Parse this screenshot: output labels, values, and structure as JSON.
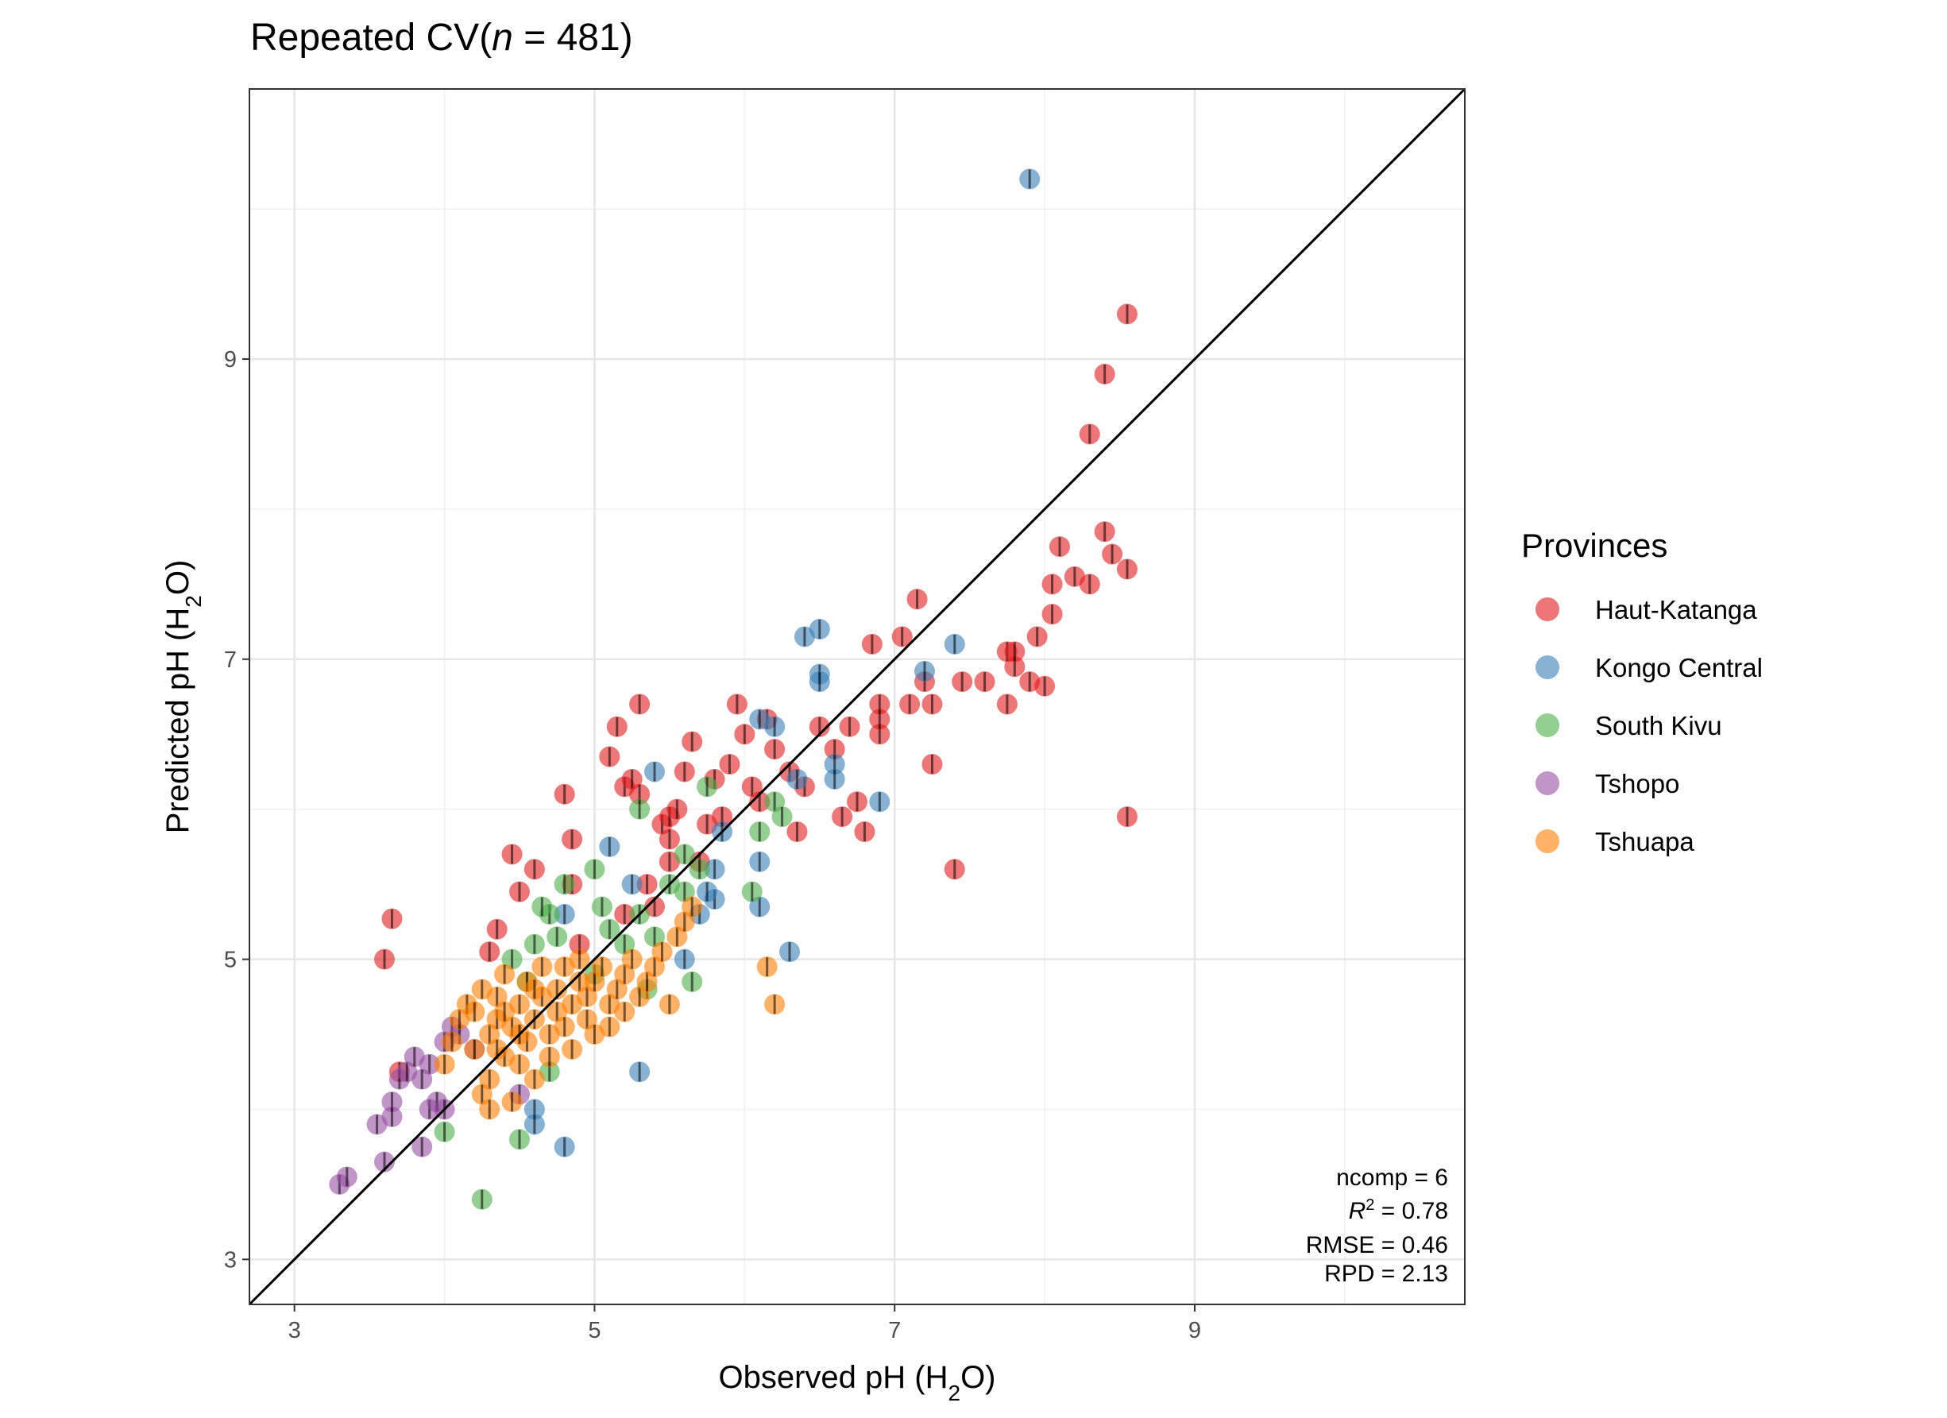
{
  "chart_data": {
    "type": "scatter",
    "title": {
      "prefix": "Repeated CV",
      "n_symbol": "n",
      "n_rest": " = 481)",
      "open_paren": "("
    },
    "xlabel": {
      "prefix": "Observed pH (H",
      "sub": "2",
      "suffix": "O)"
    },
    "ylabel": {
      "prefix": "Predicted pH (H",
      "sub": "2",
      "suffix": "O)"
    },
    "xlim": [
      2.7,
      10.8
    ],
    "ylim": [
      2.7,
      10.8
    ],
    "xticks": [
      "3",
      "5",
      "7",
      "9"
    ],
    "yticks": [
      "3",
      "5",
      "7",
      "9"
    ],
    "grid": true,
    "reference_line": "1:1",
    "legend": {
      "title": "Provinces",
      "position": "right"
    },
    "stats": {
      "ncomp": "ncomp = 6",
      "r2_symbol": "R",
      "r2_sup": "2",
      "r2_value": " = 0.78",
      "rmse": "RMSE = 0.46",
      "rpd": "RPD = 2.13"
    },
    "series": [
      {
        "name": "Haut-Katanga",
        "color": "#e41a1c",
        "points": [
          [
            3.6,
            5.0
          ],
          [
            3.65,
            5.27
          ],
          [
            3.7,
            4.25
          ],
          [
            4.3,
            5.05
          ],
          [
            4.35,
            5.2
          ],
          [
            4.45,
            5.7
          ],
          [
            4.5,
            5.45
          ],
          [
            4.6,
            5.6
          ],
          [
            4.8,
            6.1
          ],
          [
            4.85,
            5.8
          ],
          [
            4.85,
            5.5
          ],
          [
            5.1,
            6.35
          ],
          [
            5.15,
            6.55
          ],
          [
            5.2,
            6.15
          ],
          [
            5.25,
            6.2
          ],
          [
            5.3,
            6.7
          ],
          [
            5.3,
            6.1
          ],
          [
            5.35,
            5.5
          ],
          [
            5.4,
            5.35
          ],
          [
            5.45,
            5.9
          ],
          [
            5.5,
            5.95
          ],
          [
            5.5,
            5.8
          ],
          [
            5.55,
            6.0
          ],
          [
            5.6,
            6.25
          ],
          [
            5.65,
            6.45
          ],
          [
            5.7,
            5.65
          ],
          [
            5.75,
            5.9
          ],
          [
            5.8,
            6.2
          ],
          [
            5.85,
            5.95
          ],
          [
            5.9,
            6.3
          ],
          [
            5.95,
            6.7
          ],
          [
            6.0,
            6.5
          ],
          [
            6.05,
            6.15
          ],
          [
            6.1,
            6.05
          ],
          [
            6.15,
            6.6
          ],
          [
            6.2,
            6.4
          ],
          [
            6.3,
            6.25
          ],
          [
            6.35,
            5.85
          ],
          [
            6.4,
            6.15
          ],
          [
            6.5,
            6.55
          ],
          [
            6.6,
            6.4
          ],
          [
            6.65,
            5.95
          ],
          [
            6.7,
            6.55
          ],
          [
            6.75,
            6.05
          ],
          [
            6.8,
            5.85
          ],
          [
            6.85,
            7.1
          ],
          [
            6.9,
            6.7
          ],
          [
            6.9,
            6.5
          ],
          [
            7.05,
            7.15
          ],
          [
            7.1,
            6.7
          ],
          [
            7.15,
            7.4
          ],
          [
            7.2,
            6.85
          ],
          [
            7.25,
            6.3
          ],
          [
            7.25,
            6.7
          ],
          [
            7.4,
            5.6
          ],
          [
            7.45,
            6.85
          ],
          [
            7.6,
            6.85
          ],
          [
            7.75,
            7.05
          ],
          [
            7.75,
            6.7
          ],
          [
            7.8,
            6.95
          ],
          [
            7.9,
            6.85
          ],
          [
            7.95,
            7.15
          ],
          [
            8.0,
            6.82
          ],
          [
            8.05,
            7.5
          ],
          [
            8.1,
            7.75
          ],
          [
            8.05,
            7.3
          ],
          [
            8.2,
            7.55
          ],
          [
            8.3,
            8.5
          ],
          [
            8.3,
            7.5
          ],
          [
            8.4,
            8.9
          ],
          [
            8.4,
            7.85
          ],
          [
            8.45,
            7.7
          ],
          [
            8.55,
            9.3
          ],
          [
            8.55,
            7.6
          ],
          [
            8.55,
            5.95
          ],
          [
            7.8,
            7.05
          ],
          [
            6.9,
            6.6
          ],
          [
            5.5,
            5.65
          ],
          [
            5.2,
            5.3
          ],
          [
            4.9,
            5.1
          ]
        ]
      },
      {
        "name": "Kongo Central",
        "color": "#377eb8",
        "points": [
          [
            7.9,
            10.2
          ],
          [
            6.4,
            7.15
          ],
          [
            6.5,
            7.2
          ],
          [
            6.5,
            6.9
          ],
          [
            6.5,
            6.85
          ],
          [
            7.4,
            7.1
          ],
          [
            7.2,
            6.92
          ],
          [
            6.1,
            6.6
          ],
          [
            6.2,
            6.55
          ],
          [
            6.35,
            6.2
          ],
          [
            6.6,
            6.3
          ],
          [
            6.6,
            6.2
          ],
          [
            6.9,
            6.05
          ],
          [
            5.4,
            6.25
          ],
          [
            5.1,
            5.75
          ],
          [
            5.8,
            5.4
          ],
          [
            5.75,
            5.45
          ],
          [
            5.8,
            5.6
          ],
          [
            6.1,
            5.65
          ],
          [
            6.1,
            5.35
          ],
          [
            5.6,
            5.0
          ],
          [
            5.7,
            5.3
          ],
          [
            6.3,
            5.05
          ],
          [
            5.25,
            5.5
          ],
          [
            4.8,
            3.75
          ],
          [
            4.6,
            4.0
          ],
          [
            4.6,
            3.9
          ],
          [
            5.3,
            4.25
          ],
          [
            5.85,
            5.85
          ],
          [
            4.8,
            5.3
          ]
        ]
      },
      {
        "name": "South Kivu",
        "color": "#4daf4a",
        "points": [
          [
            4.25,
            3.4
          ],
          [
            4.5,
            3.8
          ],
          [
            4.0,
            3.85
          ],
          [
            4.7,
            4.25
          ],
          [
            5.0,
            4.9
          ],
          [
            5.2,
            5.1
          ],
          [
            5.3,
            5.3
          ],
          [
            5.5,
            5.5
          ],
          [
            5.6,
            5.7
          ],
          [
            5.7,
            5.6
          ],
          [
            5.0,
            5.6
          ],
          [
            4.8,
            5.5
          ],
          [
            4.7,
            5.3
          ],
          [
            4.6,
            5.1
          ],
          [
            5.3,
            6.0
          ],
          [
            5.6,
            5.45
          ],
          [
            5.65,
            4.85
          ],
          [
            5.75,
            6.15
          ],
          [
            6.05,
            5.45
          ],
          [
            6.1,
            5.85
          ],
          [
            6.2,
            6.05
          ],
          [
            6.25,
            5.95
          ],
          [
            4.75,
            5.15
          ],
          [
            5.05,
            5.35
          ],
          [
            5.4,
            5.15
          ],
          [
            4.55,
            4.85
          ],
          [
            4.45,
            5.0
          ],
          [
            4.65,
            5.35
          ],
          [
            5.35,
            4.8
          ],
          [
            5.1,
            5.2
          ]
        ]
      },
      {
        "name": "Tshopo",
        "color": "#984ea3",
        "points": [
          [
            3.3,
            3.5
          ],
          [
            3.35,
            3.55
          ],
          [
            3.55,
            3.9
          ],
          [
            3.6,
            3.65
          ],
          [
            3.65,
            4.05
          ],
          [
            3.7,
            4.2
          ],
          [
            3.75,
            4.25
          ],
          [
            3.8,
            4.35
          ],
          [
            3.85,
            3.75
          ],
          [
            3.9,
            4.0
          ],
          [
            3.9,
            4.3
          ],
          [
            3.95,
            4.05
          ],
          [
            4.0,
            4.45
          ],
          [
            4.05,
            4.55
          ],
          [
            4.1,
            4.5
          ],
          [
            3.65,
            3.95
          ],
          [
            3.85,
            4.2
          ],
          [
            4.0,
            4.0
          ],
          [
            4.2,
            4.4
          ],
          [
            4.5,
            4.1
          ]
        ]
      },
      {
        "name": "Tshuapa",
        "color": "#ff7f00",
        "points": [
          [
            4.1,
            4.6
          ],
          [
            4.15,
            4.7
          ],
          [
            4.2,
            4.4
          ],
          [
            4.25,
            4.8
          ],
          [
            4.3,
            4.5
          ],
          [
            4.3,
            4.2
          ],
          [
            4.35,
            4.6
          ],
          [
            4.35,
            4.75
          ],
          [
            4.4,
            4.35
          ],
          [
            4.4,
            4.9
          ],
          [
            4.45,
            4.55
          ],
          [
            4.45,
            4.05
          ],
          [
            4.5,
            4.7
          ],
          [
            4.5,
            4.3
          ],
          [
            4.55,
            4.85
          ],
          [
            4.55,
            4.45
          ],
          [
            4.6,
            4.6
          ],
          [
            4.6,
            4.2
          ],
          [
            4.65,
            4.75
          ],
          [
            4.65,
            4.95
          ],
          [
            4.7,
            4.5
          ],
          [
            4.7,
            4.35
          ],
          [
            4.75,
            4.8
          ],
          [
            4.75,
            4.65
          ],
          [
            4.8,
            4.55
          ],
          [
            4.8,
            4.95
          ],
          [
            4.85,
            4.7
          ],
          [
            4.85,
            4.4
          ],
          [
            4.9,
            4.85
          ],
          [
            4.9,
            5.0
          ],
          [
            4.95,
            4.6
          ],
          [
            4.95,
            4.75
          ],
          [
            5.0,
            4.5
          ],
          [
            5.0,
            4.85
          ],
          [
            5.05,
            4.95
          ],
          [
            5.1,
            4.7
          ],
          [
            5.1,
            4.55
          ],
          [
            5.15,
            4.8
          ],
          [
            5.2,
            4.9
          ],
          [
            5.2,
            4.65
          ],
          [
            5.25,
            5.0
          ],
          [
            5.3,
            4.75
          ],
          [
            5.35,
            4.85
          ],
          [
            5.4,
            4.95
          ],
          [
            5.45,
            5.05
          ],
          [
            5.5,
            4.7
          ],
          [
            5.55,
            5.15
          ],
          [
            5.6,
            5.25
          ],
          [
            5.65,
            5.35
          ],
          [
            6.15,
            4.95
          ],
          [
            6.2,
            4.7
          ],
          [
            4.0,
            4.3
          ],
          [
            4.05,
            4.45
          ],
          [
            4.2,
            4.65
          ],
          [
            4.35,
            4.4
          ],
          [
            4.4,
            4.65
          ],
          [
            4.25,
            4.1
          ],
          [
            4.3,
            4.0
          ],
          [
            4.5,
            4.5
          ],
          [
            4.6,
            4.8
          ]
        ]
      }
    ]
  }
}
